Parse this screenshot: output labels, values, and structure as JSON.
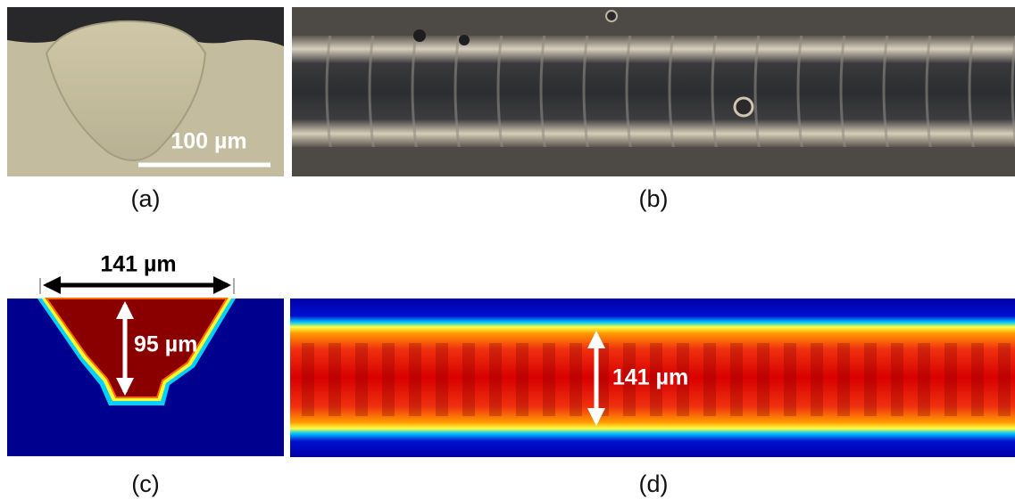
{
  "panels": [
    {
      "label": "(a)",
      "scale_bar": "100 µm"
    },
    {
      "label": "(b)"
    },
    {
      "label": "(c)",
      "width": "141 µm",
      "depth": "95 µm"
    },
    {
      "label": "(d)",
      "width": "141 µm"
    }
  ]
}
